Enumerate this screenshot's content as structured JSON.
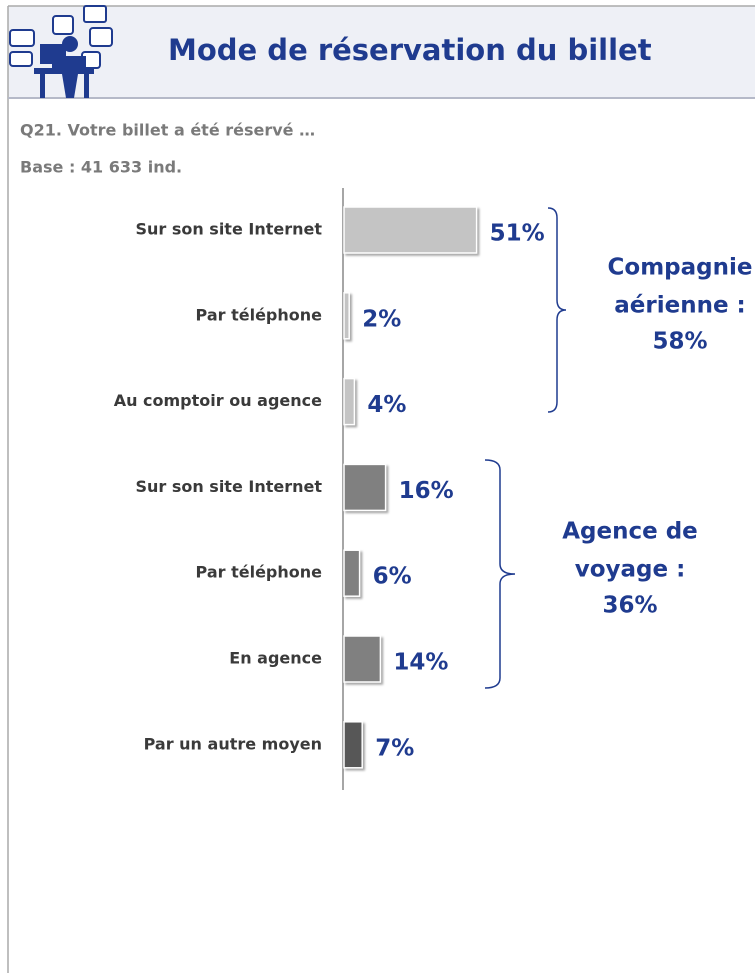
{
  "chart_data": {
    "type": "bar",
    "orientation": "horizontal",
    "title": "Mode de réservation du billet",
    "subtitle": "Q21. Votre billet a été réservé …",
    "base": "Base : 41 633 ind.",
    "categories": [
      "Sur son site Internet",
      "Par téléphone",
      "Au comptoir ou agence",
      "Sur son site Internet",
      "Par téléphone",
      "En agence",
      "Par un autre moyen"
    ],
    "values": [
      51,
      2,
      4,
      16,
      6,
      14,
      7
    ],
    "value_labels": [
      "51%",
      "2%",
      "4%",
      "16%",
      "6%",
      "14%",
      "7%"
    ],
    "colors": [
      "#c4c4c4",
      "#c4c4c4",
      "#c4c4c4",
      "#808080",
      "#808080",
      "#808080",
      "#575757"
    ],
    "xlim": [
      0,
      100
    ],
    "groups": [
      {
        "label": [
          "Compagnie",
          "aérienne :"
        ],
        "value": 58,
        "value_label": "58%"
      },
      {
        "label": [
          "Agence de",
          "voyage :"
        ],
        "value": 36,
        "value_label": "36%"
      }
    ]
  }
}
